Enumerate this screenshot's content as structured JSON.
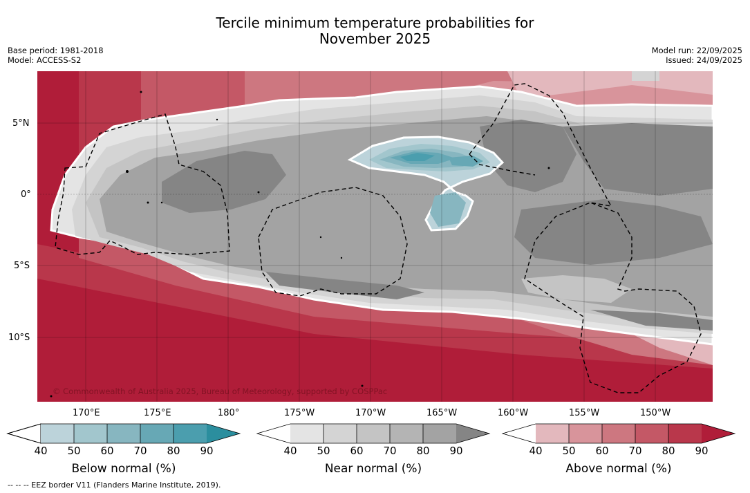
{
  "header": {
    "title_line1": "Tercile minimum temperature probabilities for",
    "title_line2": "November 2025",
    "base_period": "Base period: 1981-2018",
    "model": "Model: ACCESS-S2",
    "model_run": "Model run: 22/09/2025",
    "issued": "Issued: 24/09/2025"
  },
  "map": {
    "copyright": "© Commonwealth of Australia 2025, Bureau of Meteorology, supported by COSPPac",
    "lat_labels": [
      "5°N",
      "0°",
      "5°S",
      "10°S"
    ],
    "lon_labels": [
      "170°E",
      "175°E",
      "180°",
      "175°W",
      "170°W",
      "165°W",
      "160°W",
      "155°W",
      "150°W"
    ]
  },
  "colorbars": [
    {
      "title": "Below normal (%)",
      "ticks": [
        "40",
        "50",
        "60",
        "70",
        "80",
        "90"
      ],
      "colors": [
        "#ffffff",
        "#bcd3da",
        "#a2c6cd",
        "#87b6c0",
        "#67a8b5",
        "#4b9eae",
        "#2b8e9e"
      ]
    },
    {
      "title": "Near normal (%)",
      "ticks": [
        "40",
        "50",
        "60",
        "70",
        "80",
        "90"
      ],
      "colors": [
        "#ffffff",
        "#e4e4e4",
        "#d4d4d4",
        "#c4c4c4",
        "#b4b4b4",
        "#a3a3a3",
        "#858585"
      ]
    },
    {
      "title": "Above normal (%)",
      "ticks": [
        "40",
        "50",
        "60",
        "70",
        "80",
        "90"
      ],
      "colors": [
        "#ffffff",
        "#e3b8bd",
        "#d8949b",
        "#cd7780",
        "#c45866",
        "#b9374b",
        "#b01d39"
      ]
    }
  ],
  "footer": {
    "legend_text": "--  --  -- EEZ border V11 (Flanders Marine Institute, 2019)."
  }
}
